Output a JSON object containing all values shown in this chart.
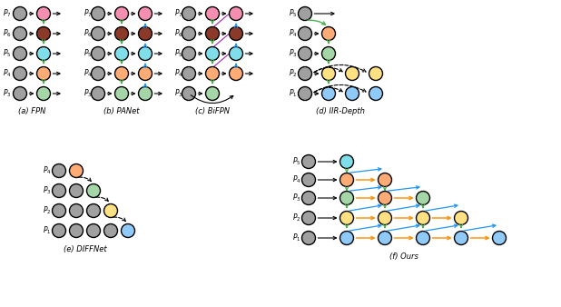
{
  "colors": {
    "gray": "#A0A0A0",
    "pink": "#F48FB1",
    "brown": "#8B3A2A",
    "cyan": "#80DEEA",
    "orange": "#FFAB76",
    "green_light": "#A5D6A7",
    "yellow": "#FFE082",
    "blue": "#90CAF9",
    "dark_green_arrow": "#4CAF50",
    "blue_arrow": "#2196F3",
    "purple_line": "#9C27B0",
    "orange_line": "#FF8C00",
    "dark_arrow": "#111111"
  },
  "labels": {
    "fpn": "(a) FPN",
    "panet": "(b) PANet",
    "bifpn": "(c) BiFPN",
    "iiRDepth": "(d) IIR-Depth",
    "diffnet": "(e) DIFFNet",
    "ours": "(f) Ours"
  },
  "p_labels_top": [
    "7",
    "6",
    "5",
    "4",
    "3"
  ],
  "p_labels_iiR": [
    "5",
    "4",
    "3",
    "2",
    "1"
  ],
  "p_labels_diff": [
    "4",
    "3",
    "2",
    "1"
  ],
  "p_labels_ours": [
    "5",
    "4",
    "3",
    "2",
    "1"
  ]
}
